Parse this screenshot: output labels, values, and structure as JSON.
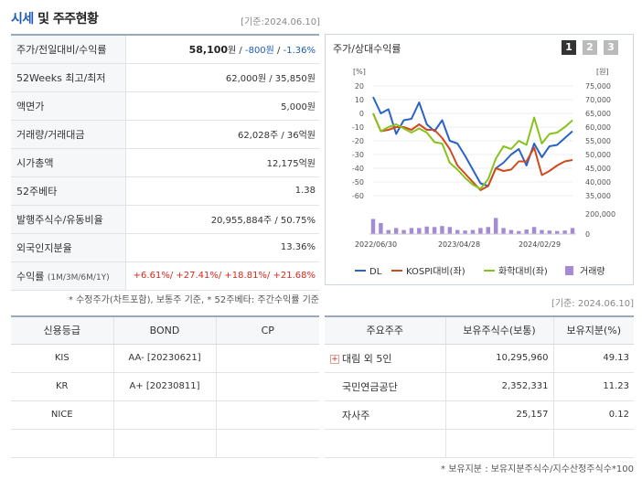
{
  "header": {
    "title_main": "시세",
    "title_rest": " 및 주주현황",
    "date": "[기준:2024.06.10]"
  },
  "summary": {
    "price_row": {
      "label": "주가/전일대비/수익률",
      "price": "58,100",
      "price_unit": "원 / ",
      "change": "-800원",
      "sep": " / ",
      "rate": "-1.36%"
    },
    "rows": [
      {
        "label": "52Weeks 최고/최저",
        "value": "62,000원 / 35,850원"
      },
      {
        "label": "액면가",
        "value": "5,000원"
      },
      {
        "label": "거래량/거래대금",
        "value": "62,028주 / 36억원"
      },
      {
        "label": "시가총액",
        "value": "12,175억원"
      },
      {
        "label": "52주베타",
        "value": "1.38"
      },
      {
        "label": "발행주식수/유동비율",
        "value": "20,955,884주 / 50.75%"
      },
      {
        "label": "외국인지분율",
        "value": "13.36%"
      }
    ],
    "return_row": {
      "label": "수익률",
      "label_small": "(1M/3M/6M/1Y)",
      "values": [
        "+6.61%/",
        " +27.41%/",
        " +18.81%/",
        " +21.68%"
      ]
    },
    "note": "* 수정주가(차트포함), 보통주 기준, * 52주베타: 주간수익률 기준"
  },
  "chart_panel": {
    "title": "주가/상대수익률",
    "pages": [
      "1",
      "2",
      "3"
    ],
    "active_page": "1",
    "date": "[기준: 2024.06.10]"
  },
  "chart_data": {
    "type": "line",
    "left_axis": {
      "unit": "[%]",
      "ticks": [
        20,
        10,
        0,
        -10,
        -20,
        -30,
        -40,
        -50,
        -60
      ],
      "ylim": [
        -60,
        20
      ]
    },
    "right_axis": {
      "unit": "[원]",
      "ticks": [
        "75,000",
        "70,000",
        "65,000",
        "60,000",
        "55,000",
        "50,000",
        "45,000",
        "40,000",
        "35,000"
      ],
      "ylim": [
        35000,
        75000
      ]
    },
    "volume_axis": {
      "ticks": [
        "200,000",
        "0"
      ],
      "ylim": [
        0,
        200000
      ]
    },
    "x_labels": [
      "2022/06/30",
      "2023/04/28",
      "2024/02/29"
    ],
    "series": [
      {
        "name": "DL",
        "color": "#2a63c4",
        "values": [
          12,
          0,
          3,
          -15,
          -5,
          -4,
          8,
          -8,
          -13,
          -5,
          -20,
          -22,
          -31,
          -41,
          -51,
          -53,
          -40,
          -36,
          -30,
          -26,
          -38,
          -22,
          -32,
          -24,
          -23,
          -18,
          -13
        ]
      },
      {
        "name": "KOSPI대비(좌)",
        "color": "#d04a1f",
        "values": [
          0,
          -13,
          -12,
          -10,
          -10,
          -12,
          -8,
          -12,
          -12,
          -18,
          -26,
          -38,
          -44,
          -50,
          -56,
          -53,
          -40,
          -42,
          -41,
          -35,
          -35,
          -25,
          -45,
          -42,
          -38,
          -35,
          -34
        ]
      },
      {
        "name": "화학대비(좌)",
        "color": "#88c21e",
        "values": [
          0,
          -13,
          -10,
          -8,
          -11,
          -14,
          -11,
          -14,
          -21,
          -22,
          -36,
          -41,
          -47,
          -52,
          -55,
          -48,
          -33,
          -24,
          -26,
          -20,
          -23,
          -3,
          -22,
          -15,
          -14,
          -10,
          -5
        ]
      }
    ],
    "volume": {
      "name": "거래량",
      "color": "#a58ad6",
      "values": [
        150000,
        110000,
        40000,
        60000,
        40000,
        60000,
        60000,
        75000,
        70000,
        80000,
        70000,
        40000,
        35000,
        40000,
        60000,
        70000,
        160000,
        60000,
        40000,
        30000,
        45000,
        70000,
        40000,
        35000,
        30000,
        35000,
        60000
      ]
    }
  },
  "credit": {
    "headers": [
      "신용등급",
      "BOND",
      "CP"
    ],
    "rows": [
      [
        "KIS",
        "AA-  [20230621]",
        ""
      ],
      [
        "KR",
        "A+  [20230811]",
        ""
      ],
      [
        "NICE",
        "",
        ""
      ],
      [
        "",
        "",
        ""
      ]
    ]
  },
  "holders": {
    "headers": [
      "주요주주",
      "보유주식수(보통)",
      "보유지분(%)"
    ],
    "rows": [
      {
        "name": "대림 외 5인",
        "expandable": true,
        "shares": "10,295,960",
        "pct": "49.13"
      },
      {
        "name": "국민연금공단",
        "expandable": false,
        "shares": "2,352,331",
        "pct": "11.23"
      },
      {
        "name": "자사주",
        "expandable": false,
        "shares": "25,157",
        "pct": "0.12"
      },
      {
        "name": "",
        "expandable": false,
        "shares": "",
        "pct": ""
      }
    ],
    "note": "* 보유지분 : 보유지분주식수/지수산정주식수*100"
  },
  "icons": {
    "expand": "plus-square-icon"
  }
}
